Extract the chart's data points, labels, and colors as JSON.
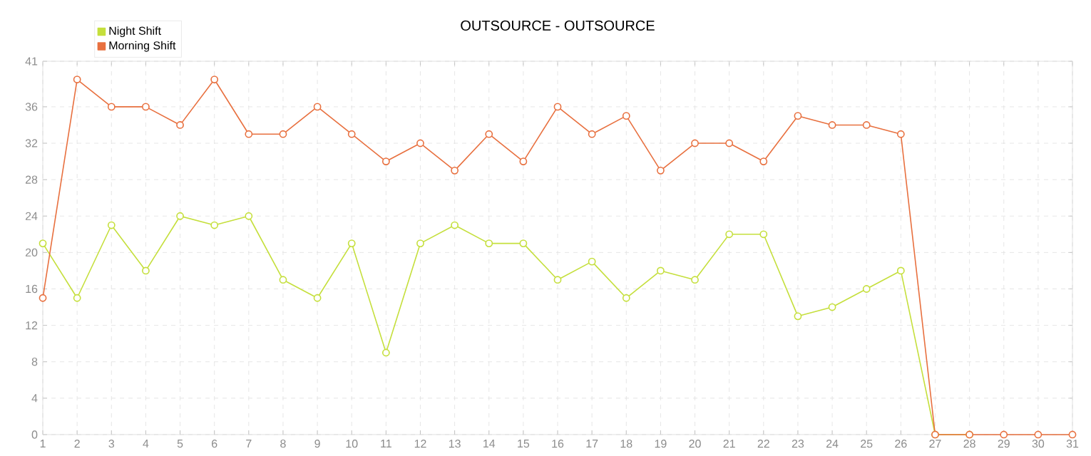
{
  "chart_data": {
    "type": "line",
    "title": "OUTSOURCE - OUTSOURCE",
    "categories": [
      "1",
      "2",
      "3",
      "4",
      "5",
      "6",
      "7",
      "8",
      "9",
      "10",
      "11",
      "12",
      "13",
      "14",
      "15",
      "16",
      "17",
      "18",
      "19",
      "20",
      "21",
      "22",
      "23",
      "24",
      "25",
      "26",
      "27",
      "28",
      "29",
      "30",
      "31"
    ],
    "series": [
      {
        "name": "Night Shift",
        "color": "#c5df3c",
        "values": [
          21,
          15,
          23,
          18,
          24,
          23,
          24,
          17,
          15,
          21,
          9,
          21,
          23,
          21,
          21,
          17,
          19,
          15,
          18,
          17,
          22,
          22,
          13,
          14,
          16,
          18,
          0,
          0,
          null,
          null,
          null
        ]
      },
      {
        "name": "Morning Shift",
        "color": "#e8703f",
        "values": [
          15,
          39,
          36,
          36,
          34,
          39,
          33,
          33,
          36,
          33,
          30,
          32,
          29,
          33,
          30,
          36,
          33,
          35,
          29,
          32,
          32,
          30,
          35,
          34,
          34,
          33,
          0,
          0,
          0,
          0,
          0
        ]
      }
    ],
    "ylim": [
      0,
      41
    ],
    "yticks": [
      0,
      4,
      8,
      12,
      16,
      20,
      24,
      28,
      32,
      36,
      41
    ],
    "grid": true,
    "legend": "top left",
    "marker": "circle",
    "line_style": "solid"
  }
}
